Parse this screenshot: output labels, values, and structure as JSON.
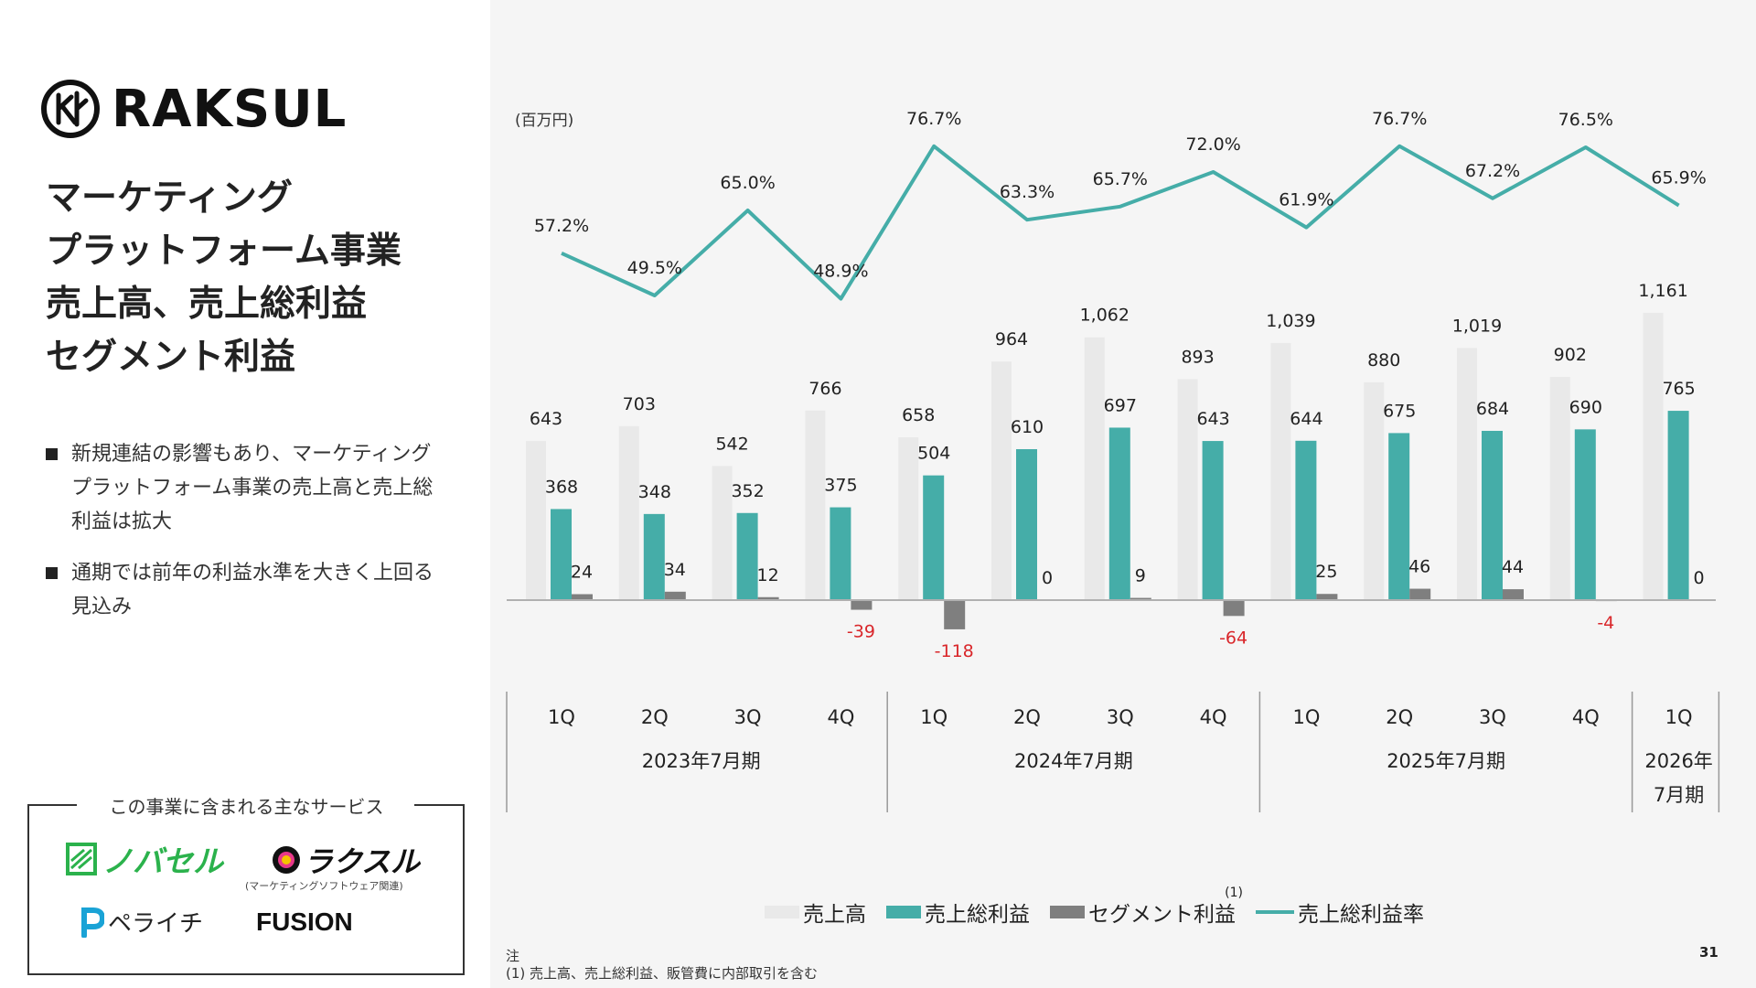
{
  "company": "RAKSUL",
  "title_lines": [
    "マーケティング",
    "プラットフォーム事業",
    "売上高、売上総利益",
    "セグメント利益"
  ],
  "bullets": [
    "新規連結の影響もあり、マーケティングプラットフォーム事業の売上高と売上総利益は拡大",
    "通期では前年の利益水準を大きく上回る見込み"
  ],
  "services": {
    "title": "この事業に含まれる主なサービス",
    "items": [
      "ノバセル",
      "ラクスル",
      "ペライチ",
      "FUSION"
    ],
    "raksul_note": "(マーケティングソフトウェア関連)"
  },
  "unit": "(百万円)",
  "legend": {
    "sales": "売上高",
    "gross_profit": "売上総利益",
    "segment_profit": "セグメント利益",
    "note_mark": "(1)",
    "gross_margin": "売上総利益率"
  },
  "note": {
    "head": "注",
    "text": "(1) 売上高、売上総利益、販管費に内部取引を含む"
  },
  "page_number": "31",
  "colors": {
    "sales": "#e9e9e9",
    "gross_profit": "#45ada8",
    "segment_profit": "#7f7f7f",
    "margin_line": "#45ada8",
    "negative_label": "#d9262a"
  },
  "chart_data": {
    "type": "bar",
    "title": "マーケティングプラットフォーム事業 売上高、売上総利益、セグメント利益",
    "ylabel": "(百万円)",
    "categories": [
      "1Q",
      "2Q",
      "3Q",
      "4Q",
      "1Q",
      "2Q",
      "3Q",
      "4Q",
      "1Q",
      "2Q",
      "3Q",
      "4Q",
      "1Q"
    ],
    "fiscal_years": [
      {
        "label": "2023年7月期",
        "quarters": 4
      },
      {
        "label": "2024年7月期",
        "quarters": 4
      },
      {
        "label": "2025年7月期",
        "quarters": 4
      },
      {
        "label": "2026年7月期",
        "label_lines": [
          "2026年",
          "7月期"
        ],
        "quarters": 1
      }
    ],
    "series": [
      {
        "name": "売上高",
        "type": "bar",
        "values": [
          643,
          703,
          542,
          766,
          658,
          964,
          1062,
          893,
          1039,
          880,
          1019,
          902,
          1161
        ],
        "labels": [
          "643",
          "703",
          "542",
          "766",
          "658",
          "964",
          "1,062",
          "893",
          "1,039",
          "880",
          "1,019",
          "902",
          "1,161"
        ]
      },
      {
        "name": "売上総利益",
        "type": "bar",
        "values": [
          368,
          348,
          352,
          375,
          504,
          610,
          697,
          643,
          644,
          675,
          684,
          690,
          765
        ],
        "labels": [
          "368",
          "348",
          "352",
          "375",
          "504",
          "610",
          "697",
          "643",
          "644",
          "675",
          "684",
          "690",
          "765"
        ]
      },
      {
        "name": "セグメント利益",
        "type": "bar",
        "values": [
          24,
          34,
          12,
          -39,
          -118,
          0,
          9,
          -64,
          25,
          46,
          44,
          -4,
          0
        ],
        "labels": [
          "24",
          "34",
          "12",
          "-39",
          "-118",
          "0",
          "9",
          "-64",
          "25",
          "46",
          "44",
          "-4",
          "0"
        ]
      },
      {
        "name": "売上総利益率",
        "type": "line",
        "unit": "%",
        "values": [
          57.2,
          49.5,
          65.0,
          48.9,
          76.7,
          63.3,
          65.7,
          72.0,
          61.9,
          76.7,
          67.2,
          76.5,
          65.9
        ],
        "labels": [
          "57.2%",
          "49.5%",
          "65.0%",
          "48.9%",
          "76.7%",
          "63.3%",
          "65.7%",
          "72.0%",
          "61.9%",
          "76.7%",
          "67.2%",
          "76.5%",
          "65.9%"
        ]
      }
    ],
    "legend_position": "bottom"
  }
}
